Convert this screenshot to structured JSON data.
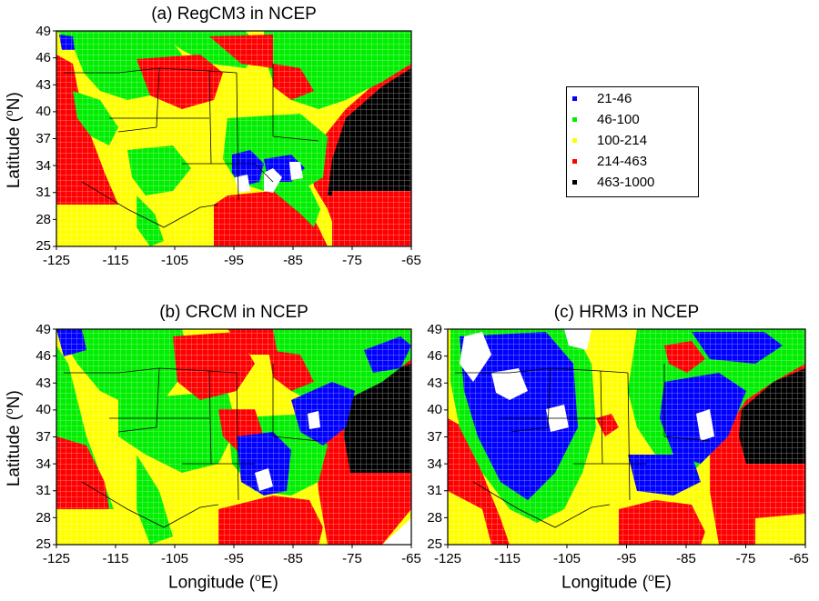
{
  "panels": [
    {
      "id": "a",
      "title": "(a) RegCM3 in NCEP"
    },
    {
      "id": "b",
      "title": "(b) CRCM in NCEP"
    },
    {
      "id": "c",
      "title": "(c) HRM3 in NCEP"
    }
  ],
  "axes": {
    "latitude_ticks": [
      "49",
      "46",
      "43",
      "40",
      "37",
      "34",
      "31",
      "28",
      "25"
    ],
    "longitude_ticks": [
      "-125",
      "-115",
      "-105",
      "-95",
      "-85",
      "-75",
      "-65"
    ],
    "ylabel_main": "Latitude (",
    "ylabel_sup": "o",
    "ylabel_end": "N)",
    "xlabel_main": "Longitude (",
    "xlabel_sup": "o",
    "xlabel_end": "E)"
  },
  "legend": {
    "items": [
      {
        "label": "21-46",
        "color": "#0000ff"
      },
      {
        "label": "46-100",
        "color": "#00ee00"
      },
      {
        "label": "100-214",
        "color": "#ffff00"
      },
      {
        "label": "214-463",
        "color": "#ff0000"
      },
      {
        "label": "463-1000",
        "color": "#000000"
      }
    ]
  }
}
